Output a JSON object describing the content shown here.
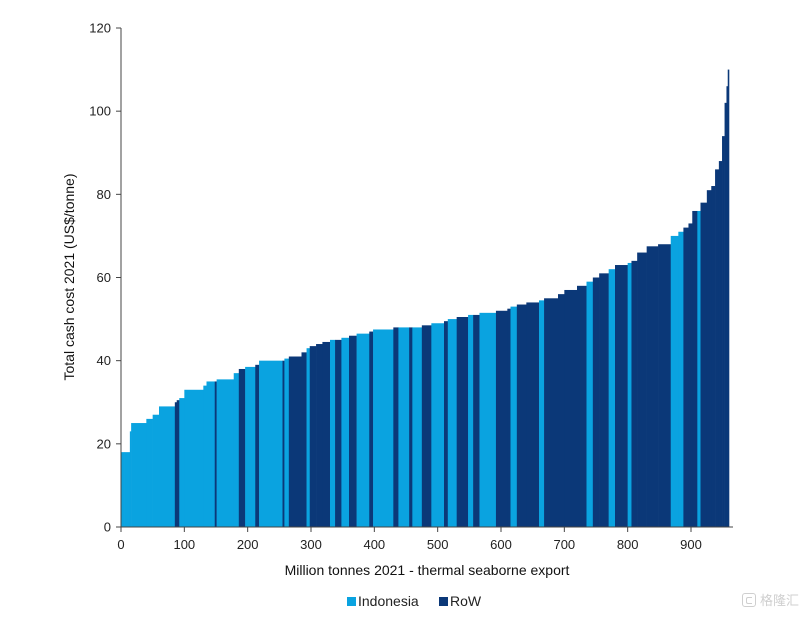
{
  "chart_data": {
    "type": "bar",
    "subtype": "cost-curve",
    "title": "",
    "xlabel": "Million tonnes 2021 - thermal seaborne export",
    "ylabel": "Total cash cost 2021 (US$/tonne)",
    "xlim": [
      0,
      960
    ],
    "ylim": [
      0,
      120
    ],
    "x_ticks": [
      0,
      100,
      200,
      300,
      400,
      500,
      600,
      700,
      800,
      900
    ],
    "y_ticks": [
      0,
      20,
      40,
      60,
      80,
      100,
      120
    ],
    "grid": false,
    "legend_position": "bottom-center",
    "series": [
      {
        "name": "Indonesia",
        "color": "#0aa3e0"
      },
      {
        "name": "RoW",
        "color": "#0b3878"
      }
    ],
    "segments": [
      {
        "x0": 0,
        "x1": 5,
        "y": 18,
        "series": "Indonesia"
      },
      {
        "x0": 5,
        "x1": 14,
        "y": 18,
        "series": "Indonesia"
      },
      {
        "x0": 14,
        "x1": 16,
        "y": 23,
        "series": "Indonesia"
      },
      {
        "x0": 16,
        "x1": 40,
        "y": 25,
        "series": "Indonesia"
      },
      {
        "x0": 40,
        "x1": 50,
        "y": 26,
        "series": "Indonesia"
      },
      {
        "x0": 50,
        "x1": 60,
        "y": 27,
        "series": "Indonesia"
      },
      {
        "x0": 60,
        "x1": 85,
        "y": 29,
        "series": "Indonesia"
      },
      {
        "x0": 85,
        "x1": 88,
        "y": 30,
        "series": "RoW"
      },
      {
        "x0": 88,
        "x1": 92,
        "y": 30.5,
        "series": "RoW"
      },
      {
        "x0": 92,
        "x1": 100,
        "y": 31,
        "series": "Indonesia"
      },
      {
        "x0": 100,
        "x1": 130,
        "y": 33,
        "series": "Indonesia"
      },
      {
        "x0": 130,
        "x1": 135,
        "y": 34,
        "series": "Indonesia"
      },
      {
        "x0": 135,
        "x1": 148,
        "y": 35,
        "series": "Indonesia"
      },
      {
        "x0": 148,
        "x1": 151,
        "y": 35,
        "series": "RoW"
      },
      {
        "x0": 151,
        "x1": 178,
        "y": 35.5,
        "series": "Indonesia"
      },
      {
        "x0": 178,
        "x1": 186,
        "y": 37,
        "series": "Indonesia"
      },
      {
        "x0": 186,
        "x1": 196,
        "y": 38,
        "series": "RoW"
      },
      {
        "x0": 196,
        "x1": 212,
        "y": 38.5,
        "series": "Indonesia"
      },
      {
        "x0": 212,
        "x1": 218,
        "y": 39,
        "series": "RoW"
      },
      {
        "x0": 218,
        "x1": 255,
        "y": 40,
        "series": "Indonesia"
      },
      {
        "x0": 255,
        "x1": 258,
        "y": 40,
        "series": "RoW"
      },
      {
        "x0": 258,
        "x1": 265,
        "y": 40.5,
        "series": "Indonesia"
      },
      {
        "x0": 265,
        "x1": 285,
        "y": 41,
        "series": "RoW"
      },
      {
        "x0": 285,
        "x1": 293,
        "y": 42,
        "series": "RoW"
      },
      {
        "x0": 293,
        "x1": 298,
        "y": 43,
        "series": "Indonesia"
      },
      {
        "x0": 298,
        "x1": 308,
        "y": 43.5,
        "series": "RoW"
      },
      {
        "x0": 308,
        "x1": 318,
        "y": 44,
        "series": "RoW"
      },
      {
        "x0": 318,
        "x1": 330,
        "y": 44.5,
        "series": "RoW"
      },
      {
        "x0": 330,
        "x1": 338,
        "y": 45,
        "series": "Indonesia"
      },
      {
        "x0": 338,
        "x1": 348,
        "y": 45,
        "series": "RoW"
      },
      {
        "x0": 348,
        "x1": 360,
        "y": 45.5,
        "series": "Indonesia"
      },
      {
        "x0": 360,
        "x1": 372,
        "y": 46,
        "series": "RoW"
      },
      {
        "x0": 372,
        "x1": 392,
        "y": 46.5,
        "series": "Indonesia"
      },
      {
        "x0": 392,
        "x1": 398,
        "y": 47,
        "series": "RoW"
      },
      {
        "x0": 398,
        "x1": 430,
        "y": 47.5,
        "series": "Indonesia"
      },
      {
        "x0": 430,
        "x1": 438,
        "y": 48,
        "series": "RoW"
      },
      {
        "x0": 438,
        "x1": 455,
        "y": 48,
        "series": "Indonesia"
      },
      {
        "x0": 455,
        "x1": 460,
        "y": 48,
        "series": "RoW"
      },
      {
        "x0": 460,
        "x1": 475,
        "y": 48,
        "series": "Indonesia"
      },
      {
        "x0": 475,
        "x1": 490,
        "y": 48.5,
        "series": "RoW"
      },
      {
        "x0": 490,
        "x1": 510,
        "y": 49,
        "series": "Indonesia"
      },
      {
        "x0": 510,
        "x1": 516,
        "y": 49.5,
        "series": "RoW"
      },
      {
        "x0": 516,
        "x1": 530,
        "y": 50,
        "series": "Indonesia"
      },
      {
        "x0": 530,
        "x1": 548,
        "y": 50.5,
        "series": "RoW"
      },
      {
        "x0": 548,
        "x1": 556,
        "y": 51,
        "series": "Indonesia"
      },
      {
        "x0": 556,
        "x1": 566,
        "y": 51,
        "series": "RoW"
      },
      {
        "x0": 566,
        "x1": 592,
        "y": 51.5,
        "series": "Indonesia"
      },
      {
        "x0": 592,
        "x1": 610,
        "y": 52,
        "series": "RoW"
      },
      {
        "x0": 610,
        "x1": 615,
        "y": 52.5,
        "series": "RoW"
      },
      {
        "x0": 615,
        "x1": 625,
        "y": 53,
        "series": "Indonesia"
      },
      {
        "x0": 625,
        "x1": 640,
        "y": 53.5,
        "series": "RoW"
      },
      {
        "x0": 640,
        "x1": 660,
        "y": 54,
        "series": "RoW"
      },
      {
        "x0": 660,
        "x1": 668,
        "y": 54.5,
        "series": "Indonesia"
      },
      {
        "x0": 668,
        "x1": 690,
        "y": 55,
        "series": "RoW"
      },
      {
        "x0": 690,
        "x1": 700,
        "y": 56,
        "series": "RoW"
      },
      {
        "x0": 700,
        "x1": 720,
        "y": 57,
        "series": "RoW"
      },
      {
        "x0": 720,
        "x1": 735,
        "y": 58,
        "series": "RoW"
      },
      {
        "x0": 735,
        "x1": 745,
        "y": 59,
        "series": "Indonesia"
      },
      {
        "x0": 745,
        "x1": 755,
        "y": 60,
        "series": "RoW"
      },
      {
        "x0": 755,
        "x1": 770,
        "y": 61,
        "series": "RoW"
      },
      {
        "x0": 770,
        "x1": 780,
        "y": 62,
        "series": "Indonesia"
      },
      {
        "x0": 780,
        "x1": 800,
        "y": 63,
        "series": "RoW"
      },
      {
        "x0": 800,
        "x1": 806,
        "y": 63.5,
        "series": "Indonesia"
      },
      {
        "x0": 806,
        "x1": 815,
        "y": 64,
        "series": "RoW"
      },
      {
        "x0": 815,
        "x1": 830,
        "y": 66,
        "series": "RoW"
      },
      {
        "x0": 830,
        "x1": 848,
        "y": 67.5,
        "series": "RoW"
      },
      {
        "x0": 848,
        "x1": 868,
        "y": 68,
        "series": "RoW"
      },
      {
        "x0": 868,
        "x1": 880,
        "y": 70,
        "series": "Indonesia"
      },
      {
        "x0": 880,
        "x1": 888,
        "y": 71,
        "series": "Indonesia"
      },
      {
        "x0": 888,
        "x1": 896,
        "y": 72,
        "series": "RoW"
      },
      {
        "x0": 896,
        "x1": 902,
        "y": 73,
        "series": "RoW"
      },
      {
        "x0": 902,
        "x1": 910,
        "y": 76,
        "series": "RoW"
      },
      {
        "x0": 910,
        "x1": 915,
        "y": 76,
        "series": "Indonesia"
      },
      {
        "x0": 915,
        "x1": 925,
        "y": 78,
        "series": "RoW"
      },
      {
        "x0": 925,
        "x1": 932,
        "y": 81,
        "series": "RoW"
      },
      {
        "x0": 932,
        "x1": 938,
        "y": 82,
        "series": "RoW"
      },
      {
        "x0": 938,
        "x1": 944,
        "y": 86,
        "series": "RoW"
      },
      {
        "x0": 944,
        "x1": 949,
        "y": 88,
        "series": "RoW"
      },
      {
        "x0": 949,
        "x1": 953,
        "y": 94,
        "series": "RoW"
      },
      {
        "x0": 953,
        "x1": 956,
        "y": 102,
        "series": "RoW"
      },
      {
        "x0": 956,
        "x1": 958,
        "y": 106,
        "series": "RoW"
      },
      {
        "x0": 958,
        "x1": 960,
        "y": 110,
        "series": "RoW"
      }
    ]
  },
  "legend": {
    "items": [
      {
        "label": "Indonesia",
        "color": "#0aa3e0"
      },
      {
        "label": "RoW",
        "color": "#0b3878"
      }
    ]
  },
  "watermark": {
    "text": "格隆汇"
  }
}
